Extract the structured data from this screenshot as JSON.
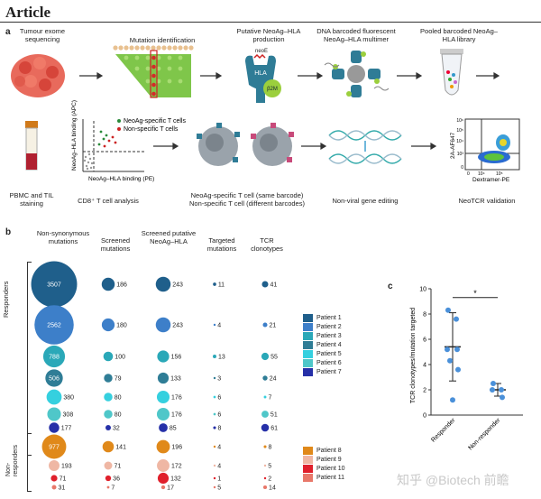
{
  "header": {
    "title": "Article"
  },
  "panel_a": {
    "label": "a",
    "step1": "Tumour exome sequencing",
    "step2": "Mutation identification",
    "step3": "Putative NeoAg–HLA production",
    "step4": "DNA barcoded fluorescent NeoAg–HLA multimer",
    "step5": "Pooled barcoded NeoAg–HLA library",
    "protein_neoE": "neoE",
    "protein_hla": "HLA",
    "protein_b2m": "β2M",
    "pbmc": "PBMC and TIL staining",
    "axis_y": "NeoAg–HLA binding (APC)",
    "axis_x": "NeoAg–HLA binding (PE)",
    "legend_specific": "NeoAg-specific T cells",
    "legend_nonspecific": "Non-specific T cells",
    "cd8": "CD8⁺ T cell analysis",
    "same_barcode": "NeoAg-specific T cell (same barcode)",
    "diff_barcode": "Non-specific T cell (different barcodes)",
    "gene_editing": "Non-viral gene editing",
    "flow_y": "2A-AF647",
    "flow_x": "Dextramer-PE",
    "flow_ticks": [
      "10⁶",
      "10⁵",
      "10⁴",
      "10³",
      "0",
      "0",
      "10⁴",
      "10⁵"
    ],
    "validation": "NeoTCR validation"
  },
  "panel_b": {
    "label": "b",
    "columns": [
      "Non-synonymous mutations",
      "Screened mutations",
      "Screened putative NeoAg–HLA",
      "Targeted mutations",
      "TCR clonotypes"
    ],
    "group_responders": "Responders",
    "group_nonresponders": "Non-responders",
    "rows": [
      {
        "patient": "Patient 1",
        "color": "#1f5f8b",
        "nonsyn": 3507,
        "screened": 186,
        "neoag": 243,
        "targeted": 11,
        "tcr": 41
      },
      {
        "patient": "Patient 2",
        "color": "#3d7fc9",
        "nonsyn": 2562,
        "screened": 180,
        "neoag": 243,
        "targeted": 4,
        "tcr": 21
      },
      {
        "patient": "Patient 3",
        "color": "#2aa8b8",
        "nonsyn": 788,
        "screened": 100,
        "neoag": 156,
        "targeted": 13,
        "tcr": 55
      },
      {
        "patient": "Patient 4",
        "color": "#2f7d96",
        "nonsyn": 506,
        "screened": 79,
        "neoag": 133,
        "targeted": 3,
        "tcr": 24
      },
      {
        "patient": "Patient 5",
        "color": "#35d0df",
        "nonsyn": 380,
        "screened": 80,
        "neoag": 176,
        "targeted": 6,
        "tcr": 7
      },
      {
        "patient": "Patient 6",
        "color": "#4fc7c9",
        "nonsyn": 308,
        "screened": 80,
        "neoag": 176,
        "targeted": 6,
        "tcr": 51
      },
      {
        "patient": "Patient 7",
        "color": "#2630a8",
        "nonsyn": 177,
        "screened": 32,
        "neoag": 85,
        "targeted": 8,
        "tcr": 61
      },
      {
        "patient": "Patient 8",
        "color": "#e0891a",
        "nonsyn": 977,
        "screened": 141,
        "neoag": 196,
        "targeted": 4,
        "tcr": 8
      },
      {
        "patient": "Patient 9",
        "color": "#efb7a4",
        "nonsyn": 193,
        "screened": 71,
        "neoag": 172,
        "targeted": 4,
        "tcr": 5
      },
      {
        "patient": "Patient 10",
        "color": "#e0202c",
        "nonsyn": 71,
        "screened": 36,
        "neoag": 132,
        "targeted": 1,
        "tcr": 2
      },
      {
        "patient": "Patient 11",
        "color": "#e8786a",
        "nonsyn": 31,
        "screened": 7,
        "neoag": 17,
        "targeted": 5,
        "tcr": 14
      }
    ]
  },
  "panel_c": {
    "label": "c",
    "chart_data": {
      "type": "scatter",
      "title": "",
      "ylabel": "TCR clonotypes/mutation targeted",
      "xlabel": "",
      "categories": [
        "Responder",
        "Non-responder"
      ],
      "ylim": [
        0,
        10
      ],
      "yticks": [
        0,
        2,
        4,
        6,
        8,
        10
      ],
      "series": [
        {
          "name": "Responder",
          "color": "#4a90d9",
          "values": [
            8.3,
            7.6,
            5.2,
            5.2,
            4.3,
            3.6,
            1.2
          ],
          "mean": 5.4,
          "sd_low": 2.7,
          "sd_high": 8.1
        },
        {
          "name": "Non-responder",
          "color": "#4a90d9",
          "values": [
            2.5,
            2.0,
            2.0,
            1.4
          ],
          "mean": 2.0,
          "sd_low": 1.5,
          "sd_high": 2.5
        }
      ],
      "significance": "*"
    }
  },
  "watermark": "知乎 @Biotech 前瞻"
}
